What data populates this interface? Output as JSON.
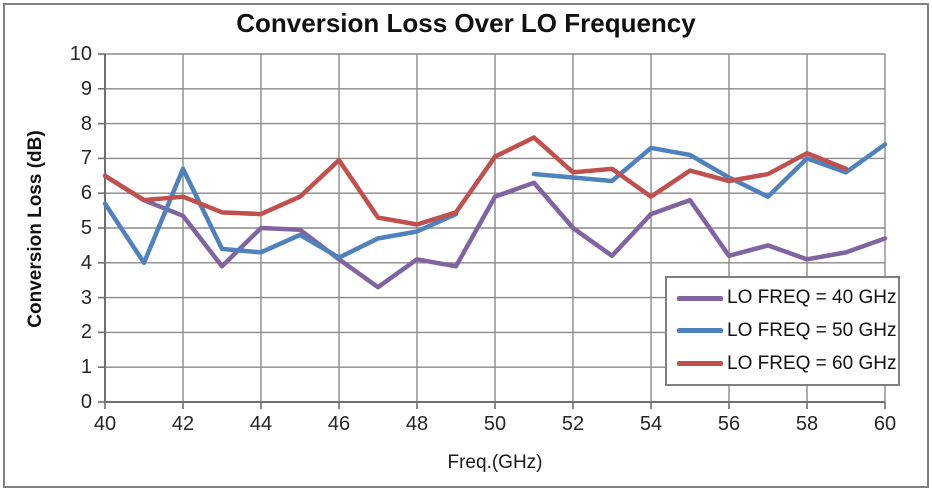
{
  "chart_data": {
    "type": "line",
    "title": "Conversion Loss Over LO Frequency",
    "xlabel": "Freq.(GHz)",
    "ylabel": "Conversion Loss (dB)",
    "xlim": [
      40,
      60
    ],
    "ylim": [
      0,
      10
    ],
    "x_ticks": [
      40,
      42,
      44,
      46,
      48,
      50,
      52,
      54,
      56,
      58,
      60
    ],
    "y_ticks": [
      0,
      1,
      2,
      3,
      4,
      5,
      6,
      7,
      8,
      9,
      10
    ],
    "grid": true,
    "legend_position": "right-middle",
    "grid_color": "#8a8a8a",
    "axis_color": "#707070",
    "x": [
      40,
      41,
      42,
      43,
      44,
      45,
      46,
      47,
      48,
      49,
      50,
      51,
      52,
      53,
      54,
      55,
      56,
      57,
      58,
      59,
      60
    ],
    "series": [
      {
        "name": "LO FREQ = 40 GHz",
        "color": "#8064A2",
        "values": [
          6.5,
          5.8,
          5.35,
          3.9,
          5.0,
          4.95,
          4.1,
          3.3,
          4.1,
          3.9,
          5.9,
          6.3,
          5.0,
          4.2,
          5.4,
          5.8,
          4.2,
          4.5,
          4.1,
          4.3,
          4.7
        ]
      },
      {
        "name": "LO FREQ = 50 GHz",
        "color": "#4F81BD",
        "values": [
          5.7,
          4.0,
          6.7,
          4.4,
          4.3,
          4.8,
          4.15,
          4.7,
          4.9,
          5.4,
          null,
          6.55,
          6.45,
          6.35,
          7.3,
          7.1,
          6.45,
          5.9,
          7.0,
          6.6,
          7.4
        ]
      },
      {
        "name": "LO FREQ = 60 GHz",
        "color": "#C0504D",
        "values": [
          6.5,
          5.8,
          5.9,
          5.45,
          5.4,
          5.9,
          6.95,
          5.3,
          5.1,
          5.45,
          7.05,
          7.6,
          6.6,
          6.7,
          5.9,
          6.65,
          6.35,
          6.55,
          7.15,
          6.7,
          null
        ]
      }
    ]
  }
}
